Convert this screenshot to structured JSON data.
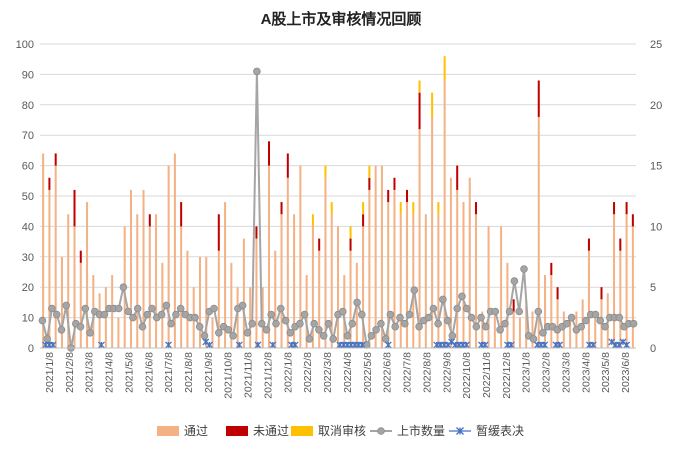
{
  "chart_data": {
    "type": "bar",
    "title": "A股上市及审核情况回顾",
    "x_tick_labels": [
      "2021/1/8",
      "2021/2/8",
      "2021/3/8",
      "2021/4/8",
      "2021/5/8",
      "2021/6/8",
      "2021/7/8",
      "2021/8/8",
      "2021/9/8",
      "2021/10/8",
      "2021/11/8",
      "2021/12/8",
      "2022/1/8",
      "2022/2/8",
      "2022/3/8",
      "2022/4/8",
      "2022/5/8",
      "2022/6/8",
      "2022/7/8",
      "2022/8/8",
      "2022/9/8",
      "2022/10/8",
      "2022/11/8",
      "2022/12/8",
      "2023/1/8",
      "2023/2/8",
      "2023/3/8",
      "2023/4/8",
      "2023/5/8",
      "2023/6/8"
    ],
    "y_left": {
      "min": 0,
      "max": 100,
      "ticks": [
        0,
        10,
        20,
        30,
        40,
        50,
        60,
        70,
        80,
        90,
        100
      ]
    },
    "y_right": {
      "min": 0,
      "max": 25,
      "ticks": [
        0,
        5,
        10,
        15,
        20,
        25
      ]
    },
    "legend_position": "bottom",
    "legend": [
      "通过",
      "未通过",
      "取消审核",
      "上市数量",
      "暂缓表决"
    ],
    "colors": {
      "approved": "#F4B183",
      "rejected": "#C00000",
      "cancelled": "#FFC000",
      "listed": "#A5A5A5",
      "postponed": "#4472C4",
      "axis": "#D9D9D9"
    },
    "series": [
      {
        "name": "通过",
        "axis": "left",
        "kind": "bar",
        "values": [
          64,
          52,
          60,
          30,
          44,
          40,
          28,
          48,
          24,
          18,
          20,
          24,
          10,
          40,
          52,
          44,
          52,
          40,
          44,
          28,
          60,
          64,
          40,
          32,
          20,
          30,
          30,
          10,
          32,
          48,
          28,
          20,
          36,
          20,
          36,
          20,
          60,
          32,
          44,
          56,
          44,
          60,
          24,
          40,
          32,
          56,
          44,
          40,
          24,
          32,
          28,
          40,
          52,
          60,
          60,
          48,
          52,
          44,
          48,
          44,
          72,
          44,
          76,
          44,
          88,
          56,
          52,
          48,
          56,
          44,
          12,
          40,
          12,
          40,
          28,
          12,
          10,
          16,
          12,
          76,
          24,
          24,
          16,
          12,
          10,
          12,
          16,
          32,
          12,
          16,
          18,
          44,
          32,
          44,
          40
        ]
      },
      {
        "name": "未通过",
        "axis": "left",
        "kind": "bar",
        "values": [
          0,
          4,
          4,
          0,
          0,
          12,
          4,
          0,
          0,
          0,
          0,
          0,
          0,
          0,
          0,
          0,
          0,
          4,
          0,
          0,
          0,
          0,
          8,
          0,
          0,
          0,
          0,
          0,
          12,
          0,
          0,
          0,
          0,
          0,
          4,
          0,
          8,
          0,
          4,
          8,
          0,
          0,
          0,
          0,
          4,
          0,
          0,
          0,
          0,
          4,
          0,
          4,
          4,
          0,
          0,
          4,
          4,
          0,
          4,
          0,
          12,
          0,
          0,
          0,
          0,
          0,
          8,
          0,
          0,
          4,
          0,
          0,
          0,
          0,
          0,
          4,
          0,
          0,
          0,
          12,
          0,
          4,
          4,
          0,
          0,
          0,
          0,
          4,
          0,
          4,
          0,
          4,
          4,
          4,
          4
        ]
      },
      {
        "name": "取消审核",
        "axis": "left",
        "kind": "bar",
        "values": [
          0,
          0,
          0,
          0,
          0,
          0,
          0,
          0,
          0,
          0,
          0,
          0,
          0,
          0,
          0,
          0,
          0,
          0,
          0,
          0,
          0,
          0,
          0,
          0,
          0,
          0,
          0,
          0,
          0,
          0,
          0,
          0,
          0,
          0,
          0,
          0,
          0,
          0,
          0,
          0,
          0,
          0,
          0,
          4,
          0,
          4,
          4,
          0,
          0,
          4,
          0,
          4,
          4,
          0,
          0,
          0,
          0,
          4,
          0,
          4,
          4,
          0,
          8,
          4,
          8,
          0,
          0,
          0,
          0,
          0,
          0,
          0,
          0,
          0,
          0,
          0,
          0,
          0,
          0,
          0,
          0,
          0,
          0,
          0,
          0,
          0,
          0,
          0,
          0,
          0,
          0,
          0,
          0,
          0,
          0
        ]
      },
      {
        "name": "上市数量",
        "axis": "left",
        "kind": "line",
        "values": [
          9,
          3,
          13,
          11,
          6,
          14,
          0,
          8,
          7,
          13,
          5,
          12,
          11,
          11,
          13,
          13,
          13,
          20,
          12,
          10,
          13,
          7,
          11,
          13,
          10,
          11,
          14,
          8,
          11,
          13,
          11,
          10,
          10,
          7,
          4,
          12,
          13,
          5,
          7,
          6,
          4,
          13,
          14,
          5,
          8,
          91,
          8,
          6,
          11,
          8,
          13,
          9,
          5,
          7,
          8,
          11,
          3,
          8,
          6,
          4,
          8,
          3,
          11,
          12,
          4,
          8,
          15,
          11,
          1,
          4,
          6,
          8,
          3,
          11,
          7,
          10,
          8,
          11,
          19,
          7,
          9,
          10,
          13,
          8,
          16,
          9,
          4,
          13,
          17,
          13,
          10,
          7,
          10,
          7,
          12,
          12,
          6,
          8,
          12,
          22,
          12,
          26,
          4,
          3,
          12,
          5,
          7,
          7,
          6,
          7,
          8,
          10,
          6,
          7,
          9,
          11,
          11,
          9,
          7,
          10,
          10,
          10,
          7,
          8,
          8
        ]
      },
      {
        "name": "暂缓表决",
        "axis": "left",
        "kind": "markers",
        "points": [
          [
            1,
            1
          ],
          [
            2,
            1
          ],
          [
            3,
            1
          ],
          [
            16,
            1
          ],
          [
            34,
            1
          ],
          [
            44,
            2
          ],
          [
            45,
            1
          ],
          [
            53,
            1
          ],
          [
            58,
            1
          ],
          [
            62,
            1
          ],
          [
            67,
            1
          ],
          [
            68,
            1
          ],
          [
            80,
            1
          ],
          [
            81,
            1
          ],
          [
            82,
            1
          ],
          [
            83,
            1
          ],
          [
            84,
            1
          ],
          [
            85,
            1
          ],
          [
            86,
            1
          ],
          [
            93,
            1
          ],
          [
            106,
            1
          ],
          [
            107,
            1
          ],
          [
            108,
            1
          ],
          [
            109,
            1
          ],
          [
            110,
            2
          ],
          [
            111,
            1
          ],
          [
            112,
            1
          ],
          [
            113,
            1
          ],
          [
            114,
            1
          ],
          [
            118,
            1
          ],
          [
            119,
            1
          ],
          [
            125,
            1
          ],
          [
            126,
            1
          ],
          [
            133,
            1
          ],
          [
            134,
            1
          ],
          [
            135,
            1
          ],
          [
            138,
            1
          ],
          [
            139,
            1
          ],
          [
            147,
            1
          ],
          [
            148,
            1
          ],
          [
            153,
            2
          ],
          [
            154,
            1
          ],
          [
            155,
            1
          ],
          [
            156,
            2
          ],
          [
            157,
            1
          ]
        ]
      }
    ]
  }
}
